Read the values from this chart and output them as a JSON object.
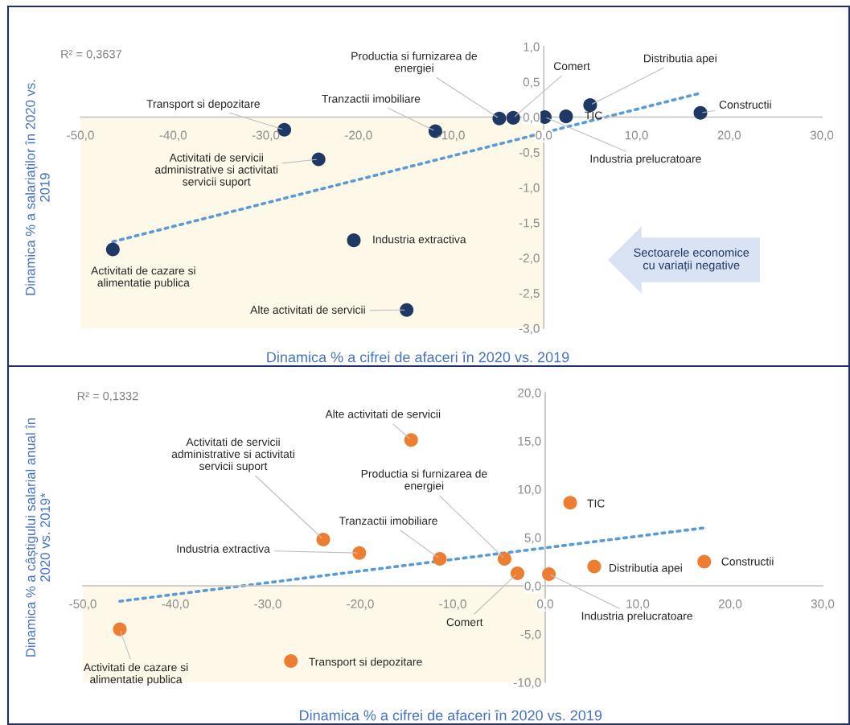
{
  "chart_data": [
    {
      "type": "scatter",
      "xlabel": "Dinamica % a cifrei de afaceri în 2020 vs. 2019",
      "ylabel": "Dinamica % a salariaților în 2020 vs.\n2019",
      "xlim": [
        -50,
        30
      ],
      "ylim": [
        -3,
        1
      ],
      "xticks": [
        {
          "value": -50,
          "label": "-50,0"
        },
        {
          "value": -40,
          "label": "-40,0"
        },
        {
          "value": -30,
          "label": "-30,0"
        },
        {
          "value": -20,
          "label": "-20,0"
        },
        {
          "value": -10,
          "label": "-10,0"
        },
        {
          "value": 0,
          "label": "0,0"
        },
        {
          "value": 10,
          "label": "10,0"
        },
        {
          "value": 20,
          "label": "20,0"
        },
        {
          "value": 30,
          "label": "30,0"
        }
      ],
      "yticks": [
        {
          "value": -3,
          "label": "-3,0"
        },
        {
          "value": -2.5,
          "label": "-2,5"
        },
        {
          "value": -2,
          "label": "-2,0"
        },
        {
          "value": -1.5,
          "label": "-1,5"
        },
        {
          "value": -1,
          "label": "-1,0"
        },
        {
          "value": -0.5,
          "label": "-0,5"
        },
        {
          "value": 0,
          "label": "0,0"
        },
        {
          "value": 0.5,
          "label": "0,5"
        },
        {
          "value": 1,
          "label": "1,0"
        }
      ],
      "series": [
        {
          "color": "#203864",
          "marker": "circle",
          "x": [
            -46.5,
            -28.0,
            -24.3,
            -11.7,
            -20.5,
            -14.8,
            -4.8,
            -3.3,
            0.1,
            2.4,
            5.0,
            16.9
          ],
          "values": [
            -1.88,
            -0.18,
            -0.6,
            -0.2,
            -1.75,
            -2.74,
            -0.02,
            -0.01,
            0.0,
            0.01,
            0.17,
            0.06
          ]
        },
        {
          "type": "line",
          "color": "#5b9bd5",
          "line_style": "dotted",
          "x": [
            -46.5,
            16.9
          ],
          "values": [
            -1.77,
            0.34
          ]
        }
      ],
      "bands": [
        {
          "axis": "x",
          "from": -50,
          "to": 0,
          "color": "#fef8e9"
        }
      ],
      "annotations": [
        "R² = 0,3637",
        "Sectoarele economice\ncu variații negative",
        {
          "text": "Activitati de cazare si\nalimentatie publica",
          "x": -46.5,
          "y": -1.88
        },
        {
          "text": "Transport si depozitare",
          "x": -28.0,
          "y": -0.18
        },
        {
          "text": "Activitati de servicii\nadministrative si activitati\nservicii suport",
          "x": -24.3,
          "y": -0.6
        },
        {
          "text": "Tranzactii imobiliare",
          "x": -11.7,
          "y": -0.2
        },
        {
          "text": "Industria extractiva",
          "x": -20.5,
          "y": -1.75
        },
        {
          "text": "Alte activitati de servicii",
          "x": -14.8,
          "y": -2.74
        },
        {
          "text": "Productia si furnizarea de\nenergiei",
          "x": -4.8,
          "y": -0.02
        },
        {
          "text": "Comert",
          "x": -3.3,
          "y": -0.01
        },
        {
          "text": "Industria prelucratoare",
          "x": 0.1,
          "y": 0.0
        },
        {
          "text": "TIC",
          "x": 2.4,
          "y": 0.01
        },
        {
          "text": "Distributia apei",
          "x": 5.0,
          "y": 0.17
        },
        {
          "text": "Constructii",
          "x": 16.9,
          "y": 0.06
        }
      ]
    },
    {
      "type": "scatter",
      "xlabel": "Dinamica % a cifrei de afaceri în 2020 vs. 2019",
      "ylabel": "Dinamica % a câștigului salarial anual în\n2020 vs. 2019*",
      "xlim": [
        -50,
        30
      ],
      "ylim": [
        -10,
        20
      ],
      "xticks": [
        {
          "value": -50,
          "label": "-50,0"
        },
        {
          "value": -40,
          "label": "-40,0"
        },
        {
          "value": -30,
          "label": "-30,0"
        },
        {
          "value": -20,
          "label": "-20,0"
        },
        {
          "value": -10,
          "label": "-10,0"
        },
        {
          "value": 0,
          "label": "0,0"
        },
        {
          "value": 10,
          "label": "10,0"
        },
        {
          "value": 20,
          "label": "20,0"
        },
        {
          "value": 30,
          "label": "30,0"
        }
      ],
      "yticks": [
        {
          "value": -10,
          "label": "-10,0"
        },
        {
          "value": -5,
          "label": "-5,0"
        },
        {
          "value": 0,
          "label": "0,0"
        },
        {
          "value": 5,
          "label": "5,0"
        },
        {
          "value": 10,
          "label": "10,0"
        },
        {
          "value": 15,
          "label": "15,0"
        },
        {
          "value": 20,
          "label": "20,0"
        }
      ],
      "series": [
        {
          "color": "#ed7d31",
          "marker": "circle",
          "x": [
            -46.0,
            -27.5,
            -24.0,
            -11.4,
            -20.1,
            -14.5,
            -4.4,
            -3.0,
            0.4,
            2.7,
            5.3,
            17.2
          ],
          "values": [
            -4.5,
            -7.8,
            4.8,
            2.8,
            3.4,
            15.1,
            2.8,
            1.3,
            1.2,
            8.6,
            2.0,
            2.5
          ]
        },
        {
          "type": "line",
          "color": "#5b9bd5",
          "line_style": "dotted",
          "x": [
            -46.0,
            17.2
          ],
          "values": [
            -1.6,
            6.0
          ]
        }
      ],
      "bands": [
        {
          "axis": "x",
          "from": -50,
          "to": 0,
          "color": "#fef8e9"
        }
      ],
      "annotations": [
        "R² = 0,1332",
        {
          "text": "Activitati de cazare si\nalimentatie publica",
          "x": -46.0,
          "y": -4.5
        },
        {
          "text": "Transport si depozitare",
          "x": -27.5,
          "y": -7.8
        },
        {
          "text": "Activitati de servicii\nadministrative si activitati\nservicii suport",
          "x": -24.0,
          "y": 4.8
        },
        {
          "text": "Tranzactii imobiliare",
          "x": -11.4,
          "y": 2.8
        },
        {
          "text": "Industria extractiva",
          "x": -20.1,
          "y": 3.4
        },
        {
          "text": "Alte activitati de servicii",
          "x": -14.5,
          "y": 15.1
        },
        {
          "text": "Productia si furnizarea de\nenergiei",
          "x": -4.4,
          "y": 2.8
        },
        {
          "text": "Comert",
          "x": -3.0,
          "y": 1.3
        },
        {
          "text": "Industria prelucratoare",
          "x": 0.4,
          "y": 1.2
        },
        {
          "text": "TIC",
          "x": 2.7,
          "y": 8.6
        },
        {
          "text": "Distributia apei",
          "x": 5.3,
          "y": 2.0
        },
        {
          "text": "Constructii",
          "x": 17.2,
          "y": 2.5
        }
      ]
    }
  ]
}
